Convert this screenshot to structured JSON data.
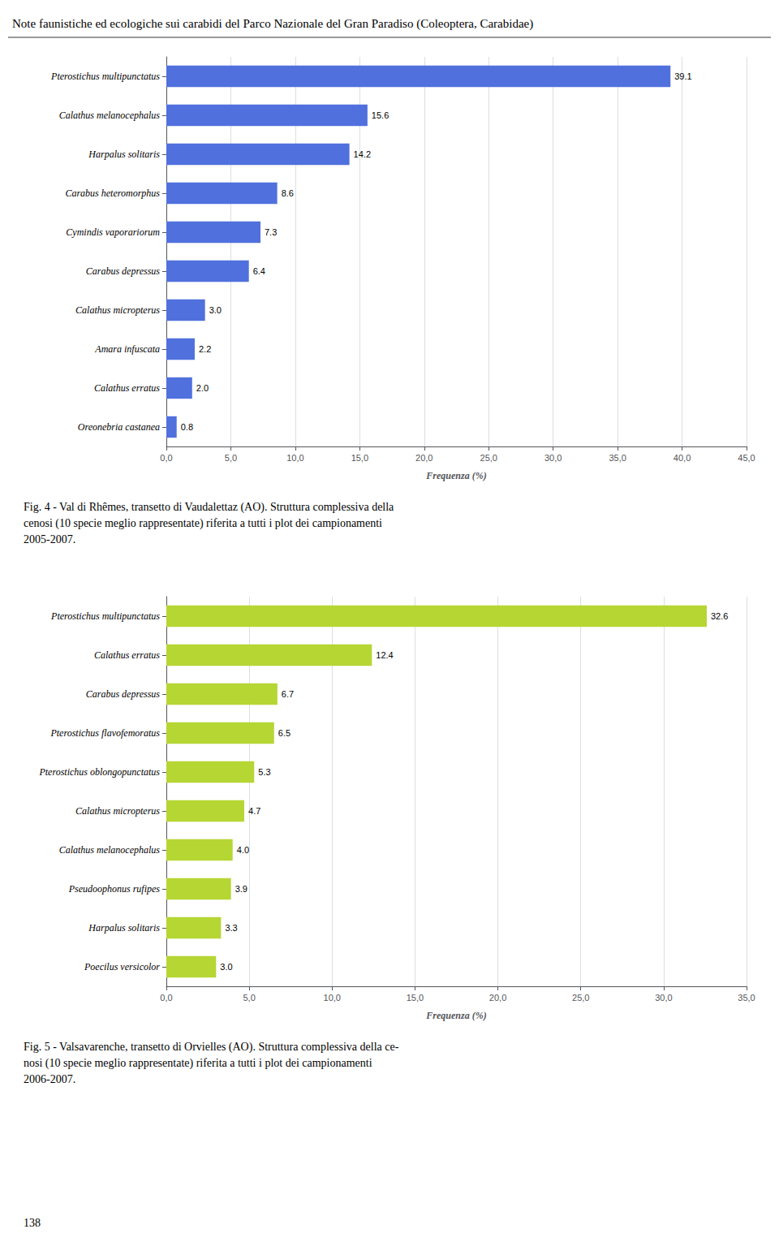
{
  "chart_data": [
    {
      "type": "bar",
      "orientation": "horizontal",
      "title": "Note faunistiche ed ecologiche sui carabidi del Parco Nazionale del Gran Paradiso (Coleoptera, Carabidae)",
      "categories": [
        "Pterostichus multipunctatus",
        "Calathus melanocephalus",
        "Harpalus solitaris",
        "Carabus heteromorphus",
        "Cymindis vaporariorum",
        "Carabus depressus",
        "Calathus micropterus",
        "Amara infuscata",
        "Calathus erratus",
        "Oreonebria castanea"
      ],
      "values": [
        39.1,
        15.6,
        14.2,
        8.6,
        7.3,
        6.4,
        3.0,
        2.2,
        2.0,
        0.8
      ],
      "value_labels": [
        "39.1",
        "15.6",
        "14.2",
        "8.6",
        "7.3",
        "6.4",
        "3.0",
        "2.2",
        "2.0",
        "0.8"
      ],
      "data_labels": true,
      "xlabel": "Frequenza (%)",
      "xlim": [
        0,
        45
      ],
      "xticks": [
        {
          "value": 0,
          "label": "0,0"
        },
        {
          "value": 5,
          "label": "5,0"
        },
        {
          "value": 10,
          "label": "10,0"
        },
        {
          "value": 15,
          "label": "15,0"
        },
        {
          "value": 20,
          "label": "20,0"
        },
        {
          "value": 25,
          "label": "25,0"
        },
        {
          "value": 30,
          "label": "30,0"
        },
        {
          "value": 35,
          "label": "35,0"
        },
        {
          "value": 40,
          "label": "40,0"
        },
        {
          "value": 45,
          "label": "45,0"
        }
      ],
      "grid": true,
      "annotations": [
        "Fig. 4 - Val di Rhêmes, transetto di Vaudalettaz (AO). Struttura complessiva della\ncenosi (10 specie meglio rappresentate) riferita a tutti i plot dei campionamenti\n2005-2007."
      ]
    },
    {
      "type": "bar",
      "orientation": "horizontal",
      "categories": [
        "Pterostichus multipunctatus",
        "Calathus erratus",
        "Carabus depressus",
        "Pterostichus flavofemoratus",
        "Pterostichus oblongopunctatus",
        "Calathus micropterus",
        "Calathus melanocephalus",
        "Pseudoophonus rufipes",
        "Harpalus solitaris",
        "Poecilus versicolor"
      ],
      "values": [
        32.6,
        12.4,
        6.7,
        6.5,
        5.3,
        4.7,
        4.0,
        3.9,
        3.3,
        3.0
      ],
      "value_labels": [
        "32.6",
        "12.4",
        "6.7",
        "6.5",
        "5.3",
        "4.7",
        "4.0",
        "3.9",
        "3.3",
        "3.0"
      ],
      "data_labels": true,
      "xlabel": "Frequenza (%)",
      "xlim": [
        0,
        35
      ],
      "xticks": [
        {
          "value": 0,
          "label": "0,0"
        },
        {
          "value": 5,
          "label": "5,0"
        },
        {
          "value": 10,
          "label": "10,0"
        },
        {
          "value": 15,
          "label": "15,0"
        },
        {
          "value": 20,
          "label": "20,0"
        },
        {
          "value": 25,
          "label": "25,0"
        },
        {
          "value": 30,
          "label": "30,0"
        },
        {
          "value": 35,
          "label": "35,0"
        }
      ],
      "grid": true,
      "annotations": [
        "Fig. 5 - Valsavarenche, transetto di Orvielles (AO). Struttura complessiva della ce-\nnosi (10 specie meglio rappresentate) riferita a tutti i plot dei campionamenti\n2006-2007.",
        "138"
      ]
    }
  ]
}
